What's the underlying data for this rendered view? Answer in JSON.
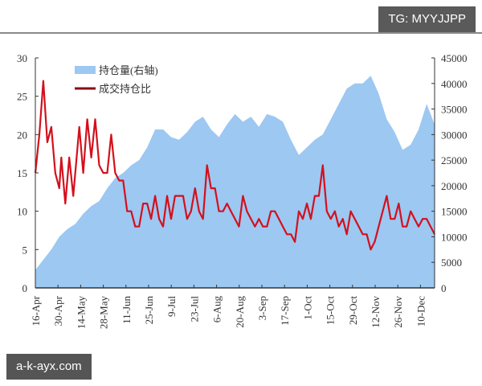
{
  "watermark_top": "TG: MYYJJPP",
  "watermark_bottom": "a-k-ayx.com",
  "chart_data": {
    "type": "line",
    "title": "",
    "legend": [
      {
        "label": "持仓量(右轴)",
        "type": "area",
        "color": "#9cc8f2"
      },
      {
        "label": "成交持仓比",
        "type": "line",
        "color": "#d4101c"
      }
    ],
    "legend_position": "top-left",
    "x_tick_labels": [
      "16-Apr",
      "30-Apr",
      "14-May",
      "28-May",
      "11-Jun",
      "25-Jun",
      "9-Jul",
      "23-Jul",
      "6-Aug",
      "20-Aug",
      "3-Sep",
      "17-Sep",
      "1-Oct",
      "15-Oct",
      "29-Oct",
      "12-Nov",
      "26-Nov",
      "10-Dec"
    ],
    "y_left": {
      "ticks": [
        0,
        5,
        10,
        15,
        20,
        25,
        30
      ],
      "ylim": [
        0,
        30
      ]
    },
    "y_right": {
      "ticks": [
        0,
        5000,
        10000,
        15000,
        20000,
        25000,
        30000,
        35000,
        40000,
        45000
      ],
      "ylim": [
        0,
        45000
      ]
    },
    "grid": false,
    "series": [
      {
        "name": "持仓量(右轴)",
        "axis": "right",
        "type": "area",
        "x_frac": [
          0,
          0.02,
          0.04,
          0.06,
          0.08,
          0.1,
          0.12,
          0.14,
          0.16,
          0.18,
          0.2,
          0.22,
          0.24,
          0.26,
          0.28,
          0.3,
          0.32,
          0.34,
          0.36,
          0.38,
          0.4,
          0.42,
          0.44,
          0.46,
          0.48,
          0.5,
          0.52,
          0.54,
          0.56,
          0.58,
          0.6,
          0.62,
          0.64,
          0.66,
          0.68,
          0.7,
          0.72,
          0.74,
          0.76,
          0.78,
          0.8,
          0.82,
          0.84,
          0.86,
          0.88,
          0.9,
          0.92,
          0.94,
          0.96,
          0.98,
          1.0
        ],
        "values": [
          3500,
          5500,
          7500,
          10000,
          11500,
          12500,
          14500,
          16000,
          17000,
          19500,
          21500,
          22500,
          24000,
          25000,
          27500,
          31000,
          31000,
          29500,
          29000,
          30500,
          32500,
          33500,
          31000,
          29500,
          32000,
          34000,
          32500,
          33500,
          31500,
          34000,
          33500,
          32500,
          29000,
          26000,
          27500,
          29000,
          30000,
          33000,
          36000,
          39000,
          40000,
          40000,
          41500,
          38000,
          33000,
          30500,
          27000,
          28000,
          31000,
          36000,
          32000
        ]
      },
      {
        "name": "成交持仓比",
        "axis": "left",
        "type": "line",
        "x_frac": [
          0,
          0.01,
          0.02,
          0.03,
          0.04,
          0.05,
          0.06,
          0.065,
          0.075,
          0.085,
          0.095,
          0.11,
          0.12,
          0.13,
          0.14,
          0.15,
          0.16,
          0.17,
          0.18,
          0.19,
          0.2,
          0.21,
          0.22,
          0.23,
          0.24,
          0.25,
          0.26,
          0.27,
          0.28,
          0.29,
          0.3,
          0.31,
          0.32,
          0.33,
          0.34,
          0.35,
          0.36,
          0.37,
          0.38,
          0.39,
          0.4,
          0.41,
          0.42,
          0.43,
          0.44,
          0.45,
          0.46,
          0.47,
          0.48,
          0.49,
          0.5,
          0.51,
          0.52,
          0.53,
          0.54,
          0.55,
          0.56,
          0.57,
          0.58,
          0.59,
          0.6,
          0.61,
          0.62,
          0.63,
          0.64,
          0.65,
          0.66,
          0.67,
          0.68,
          0.69,
          0.7,
          0.71,
          0.72,
          0.73,
          0.74,
          0.75,
          0.76,
          0.77,
          0.78,
          0.79,
          0.8,
          0.81,
          0.82,
          0.83,
          0.84,
          0.85,
          0.86,
          0.87,
          0.88,
          0.89,
          0.9,
          0.91,
          0.92,
          0.93,
          0.94,
          0.95,
          0.96,
          0.97,
          0.98,
          0.99,
          1.0
        ],
        "values": [
          15,
          20,
          27,
          19,
          21,
          15,
          13,
          17,
          11,
          17,
          12,
          21,
          15,
          22,
          17,
          22,
          16,
          15,
          15,
          20,
          15,
          14,
          14,
          10,
          10,
          8,
          8,
          11,
          11,
          9,
          12,
          9,
          8,
          12,
          9,
          12,
          12,
          12,
          9,
          10,
          13,
          10,
          9,
          16,
          13,
          13,
          10,
          10,
          11,
          10,
          9,
          8,
          12,
          10,
          9,
          8,
          9,
          8,
          8,
          10,
          10,
          9,
          8,
          7,
          7,
          6,
          10,
          9,
          11,
          9,
          12,
          12,
          16,
          10,
          9,
          10,
          8,
          9,
          7,
          10,
          9,
          8,
          7,
          7,
          5,
          6,
          8,
          10,
          12,
          9,
          9,
          11,
          8,
          8,
          10,
          9,
          8,
          9,
          9,
          8,
          7
        ]
      }
    ]
  }
}
